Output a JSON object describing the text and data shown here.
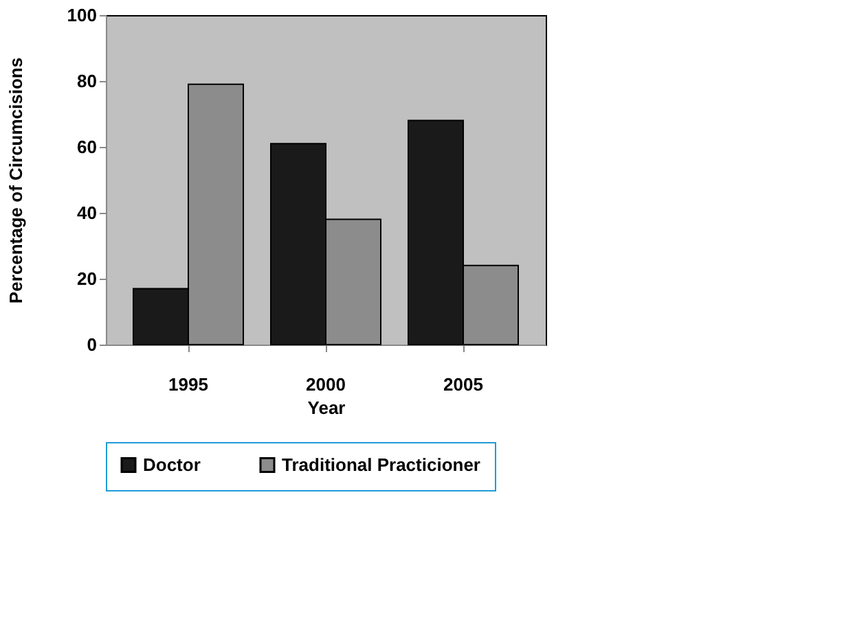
{
  "chart_data": {
    "type": "bar",
    "xlabel": "Year",
    "ylabel": "Percentage of Circumcisions",
    "categories": [
      "1995",
      "2000",
      "2005"
    ],
    "series": [
      {
        "name": "Doctor",
        "color": "#1a1a1a",
        "values": [
          17,
          61,
          68
        ]
      },
      {
        "name": "Traditional Practicioner",
        "color": "#8c8c8c",
        "values": [
          79,
          38,
          24
        ]
      }
    ],
    "ylim": [
      0,
      100
    ],
    "yticks": [
      0,
      20,
      40,
      60,
      80,
      100
    ],
    "grid": false,
    "legend": "bottom"
  }
}
